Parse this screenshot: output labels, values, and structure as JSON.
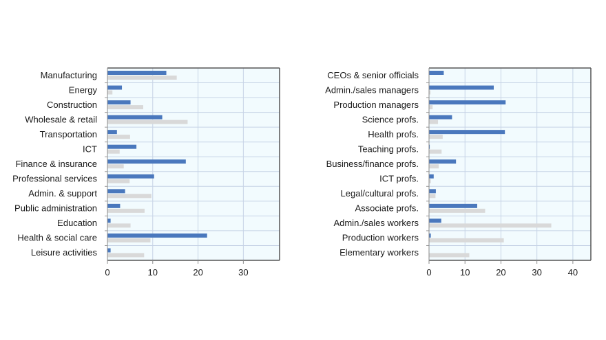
{
  "chart_data": [
    {
      "type": "bar",
      "orientation": "horizontal",
      "title": "",
      "xlabel": "",
      "ylabel": "",
      "xlim": [
        0,
        38
      ],
      "xticks": [
        0,
        10,
        20,
        30
      ],
      "grid": true,
      "legend": "none",
      "categories": [
        "Manufacturing",
        "Energy",
        "Construction",
        "Wholesale & retail",
        "Transportation",
        "ICT",
        "Finance & insurance",
        "Professional services",
        "Admin. & support",
        "Public administration",
        "Education",
        "Health & social care",
        "Leisure activities"
      ],
      "series": [
        {
          "name": "Series 1",
          "color": "#4a78bd",
          "values": [
            13.0,
            3.2,
            5.1,
            12.1,
            2.1,
            6.4,
            17.3,
            10.3,
            3.9,
            2.8,
            0.7,
            22.0,
            0.7
          ]
        },
        {
          "name": "Series 2",
          "color": "#d9d9d9",
          "values": [
            15.3,
            1.1,
            7.9,
            17.7,
            5.0,
            2.7,
            3.6,
            4.9,
            9.7,
            8.2,
            5.1,
            9.5,
            8.1
          ]
        }
      ]
    },
    {
      "type": "bar",
      "orientation": "horizontal",
      "title": "",
      "xlabel": "",
      "ylabel": "",
      "xlim": [
        0,
        45
      ],
      "xticks": [
        0,
        10,
        20,
        30,
        40
      ],
      "grid": true,
      "legend": "none",
      "categories": [
        "CEOs & senior officials",
        "Admin./sales managers",
        "Production managers",
        "Science profs.",
        "Health profs.",
        "Teaching profs.",
        "Business/finance profs.",
        "ICT profs.",
        "Legal/cultural profs.",
        "Associate profs.",
        "Admin./sales workers",
        "Production workers",
        "Elementary workers"
      ],
      "series": [
        {
          "name": "Series 1",
          "color": "#4a78bd",
          "values": [
            4.1,
            18.0,
            21.3,
            6.4,
            21.1,
            0.2,
            7.5,
            1.3,
            1.9,
            13.4,
            3.4,
            0.5,
            0.0
          ]
        },
        {
          "name": "Series 2",
          "color": "#d9d9d9",
          "values": [
            0.1,
            0.4,
            1.0,
            2.5,
            3.8,
            3.5,
            2.7,
            0.5,
            1.8,
            15.6,
            34.0,
            20.8,
            11.2
          ]
        }
      ]
    }
  ]
}
